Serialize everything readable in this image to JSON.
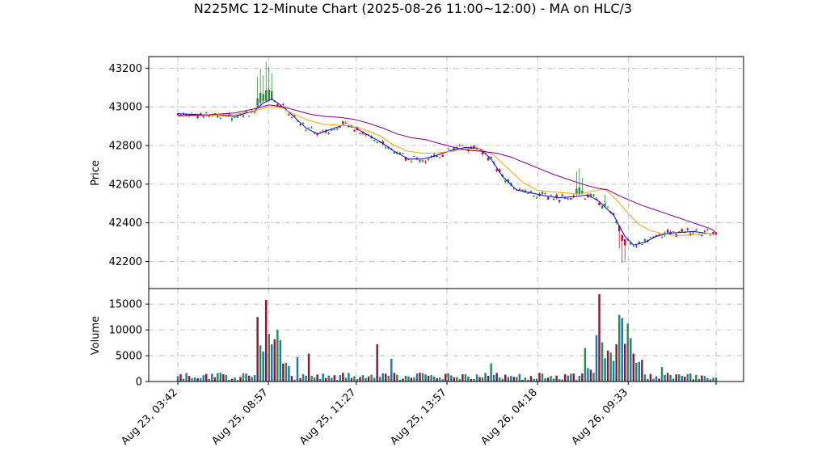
{
  "chart_data": {
    "type": "candlestick",
    "title": "N225MC 12-Minute Chart (2025-08-26 11:00~12:00) - MA on HLC/3",
    "price_panel": {
      "ylabel": "Price",
      "ylim": [
        42060,
        43260
      ],
      "yticks": [
        42200,
        42400,
        42600,
        42800,
        43000,
        43200
      ],
      "grid": true
    },
    "volume_panel": {
      "ylabel": "Volume",
      "ylim": [
        0,
        18000
      ],
      "yticks": [
        0,
        5000,
        10000,
        15000
      ],
      "grid": true
    },
    "x_tick_labels": [
      "Aug 23, 03:42",
      "Aug 25, 08:57",
      "Aug 25, 11:27",
      "Aug 25, 13:57",
      "Aug 26, 04:18",
      "Aug 26, 09:33"
    ],
    "colors": {
      "up": "#2e8b3a",
      "down": "#c8102e",
      "vol_a": "#1f77b4",
      "vol_b": "#8b1a3a",
      "vol_c": "#2e8b57",
      "ma_fast": "#0000ff",
      "ma_mid": "#ffa500",
      "ma_slow": "#800080",
      "grid": "#b0b0b0"
    },
    "moving_averages": [
      {
        "color": "blue",
        "values": [
          [
            0,
            42965
          ],
          [
            10,
            42958
          ],
          [
            20,
            42952
          ],
          [
            27,
            42980
          ],
          [
            30,
            43020
          ],
          [
            33,
            43040
          ],
          [
            36,
            43010
          ],
          [
            40,
            42960
          ],
          [
            45,
            42890
          ],
          [
            49,
            42860
          ],
          [
            53,
            42880
          ],
          [
            58,
            42905
          ],
          [
            62,
            42895
          ],
          [
            66,
            42860
          ],
          [
            71,
            42820
          ],
          [
            76,
            42770
          ],
          [
            81,
            42730
          ],
          [
            86,
            42730
          ],
          [
            91,
            42750
          ],
          [
            96,
            42775
          ],
          [
            101,
            42790
          ],
          [
            106,
            42785
          ],
          [
            110,
            42730
          ],
          [
            114,
            42640
          ],
          [
            119,
            42570
          ],
          [
            124,
            42555
          ],
          [
            129,
            42540
          ],
          [
            134,
            42530
          ],
          [
            139,
            42535
          ],
          [
            144,
            42545
          ],
          [
            148,
            42510
          ],
          [
            153,
            42440
          ],
          [
            157,
            42330
          ],
          [
            160,
            42285
          ],
          [
            164,
            42300
          ],
          [
            168,
            42330
          ],
          [
            172,
            42345
          ],
          [
            176,
            42350
          ],
          [
            181,
            42355
          ],
          [
            186,
            42345
          ],
          [
            189,
            42340
          ]
        ]
      },
      {
        "color": "orange",
        "values": [
          [
            0,
            42950
          ],
          [
            10,
            42955
          ],
          [
            20,
            42960
          ],
          [
            27,
            42980
          ],
          [
            32,
            43000
          ],
          [
            36,
            43000
          ],
          [
            41,
            42960
          ],
          [
            46,
            42930
          ],
          [
            51,
            42910
          ],
          [
            56,
            42905
          ],
          [
            61,
            42900
          ],
          [
            66,
            42880
          ],
          [
            71,
            42850
          ],
          [
            76,
            42800
          ],
          [
            81,
            42770
          ],
          [
            86,
            42760
          ],
          [
            91,
            42762
          ],
          [
            96,
            42770
          ],
          [
            101,
            42780
          ],
          [
            106,
            42785
          ],
          [
            111,
            42750
          ],
          [
            116,
            42680
          ],
          [
            121,
            42610
          ],
          [
            126,
            42570
          ],
          [
            131,
            42560
          ],
          [
            136,
            42555
          ],
          [
            141,
            42548
          ],
          [
            146,
            42565
          ],
          [
            150,
            42575
          ],
          [
            154,
            42520
          ],
          [
            158,
            42450
          ],
          [
            162,
            42390
          ],
          [
            166,
            42360
          ],
          [
            170,
            42345
          ],
          [
            174,
            42335
          ],
          [
            178,
            42335
          ],
          [
            182,
            42340
          ],
          [
            186,
            42345
          ],
          [
            189,
            42340
          ]
        ]
      },
      {
        "color": "purple",
        "values": [
          [
            0,
            42955
          ],
          [
            10,
            42958
          ],
          [
            20,
            42968
          ],
          [
            27,
            42990
          ],
          [
            32,
            43010
          ],
          [
            37,
            43000
          ],
          [
            42,
            42980
          ],
          [
            47,
            42960
          ],
          [
            52,
            42950
          ],
          [
            57,
            42945
          ],
          [
            62,
            42935
          ],
          [
            67,
            42915
          ],
          [
            72,
            42890
          ],
          [
            77,
            42860
          ],
          [
            82,
            42840
          ],
          [
            87,
            42830
          ],
          [
            92,
            42810
          ],
          [
            97,
            42790
          ],
          [
            102,
            42775
          ],
          [
            107,
            42770
          ],
          [
            112,
            42760
          ],
          [
            117,
            42740
          ],
          [
            122,
            42710
          ],
          [
            127,
            42680
          ],
          [
            132,
            42650
          ],
          [
            137,
            42625
          ],
          [
            142,
            42600
          ],
          [
            147,
            42580
          ],
          [
            151,
            42570
          ],
          [
            155,
            42540
          ],
          [
            159,
            42515
          ],
          [
            163,
            42490
          ],
          [
            167,
            42470
          ],
          [
            171,
            42450
          ],
          [
            175,
            42430
          ],
          [
            179,
            42410
          ],
          [
            183,
            42390
          ],
          [
            187,
            42370
          ],
          [
            189,
            42350
          ]
        ]
      }
    ]
  }
}
